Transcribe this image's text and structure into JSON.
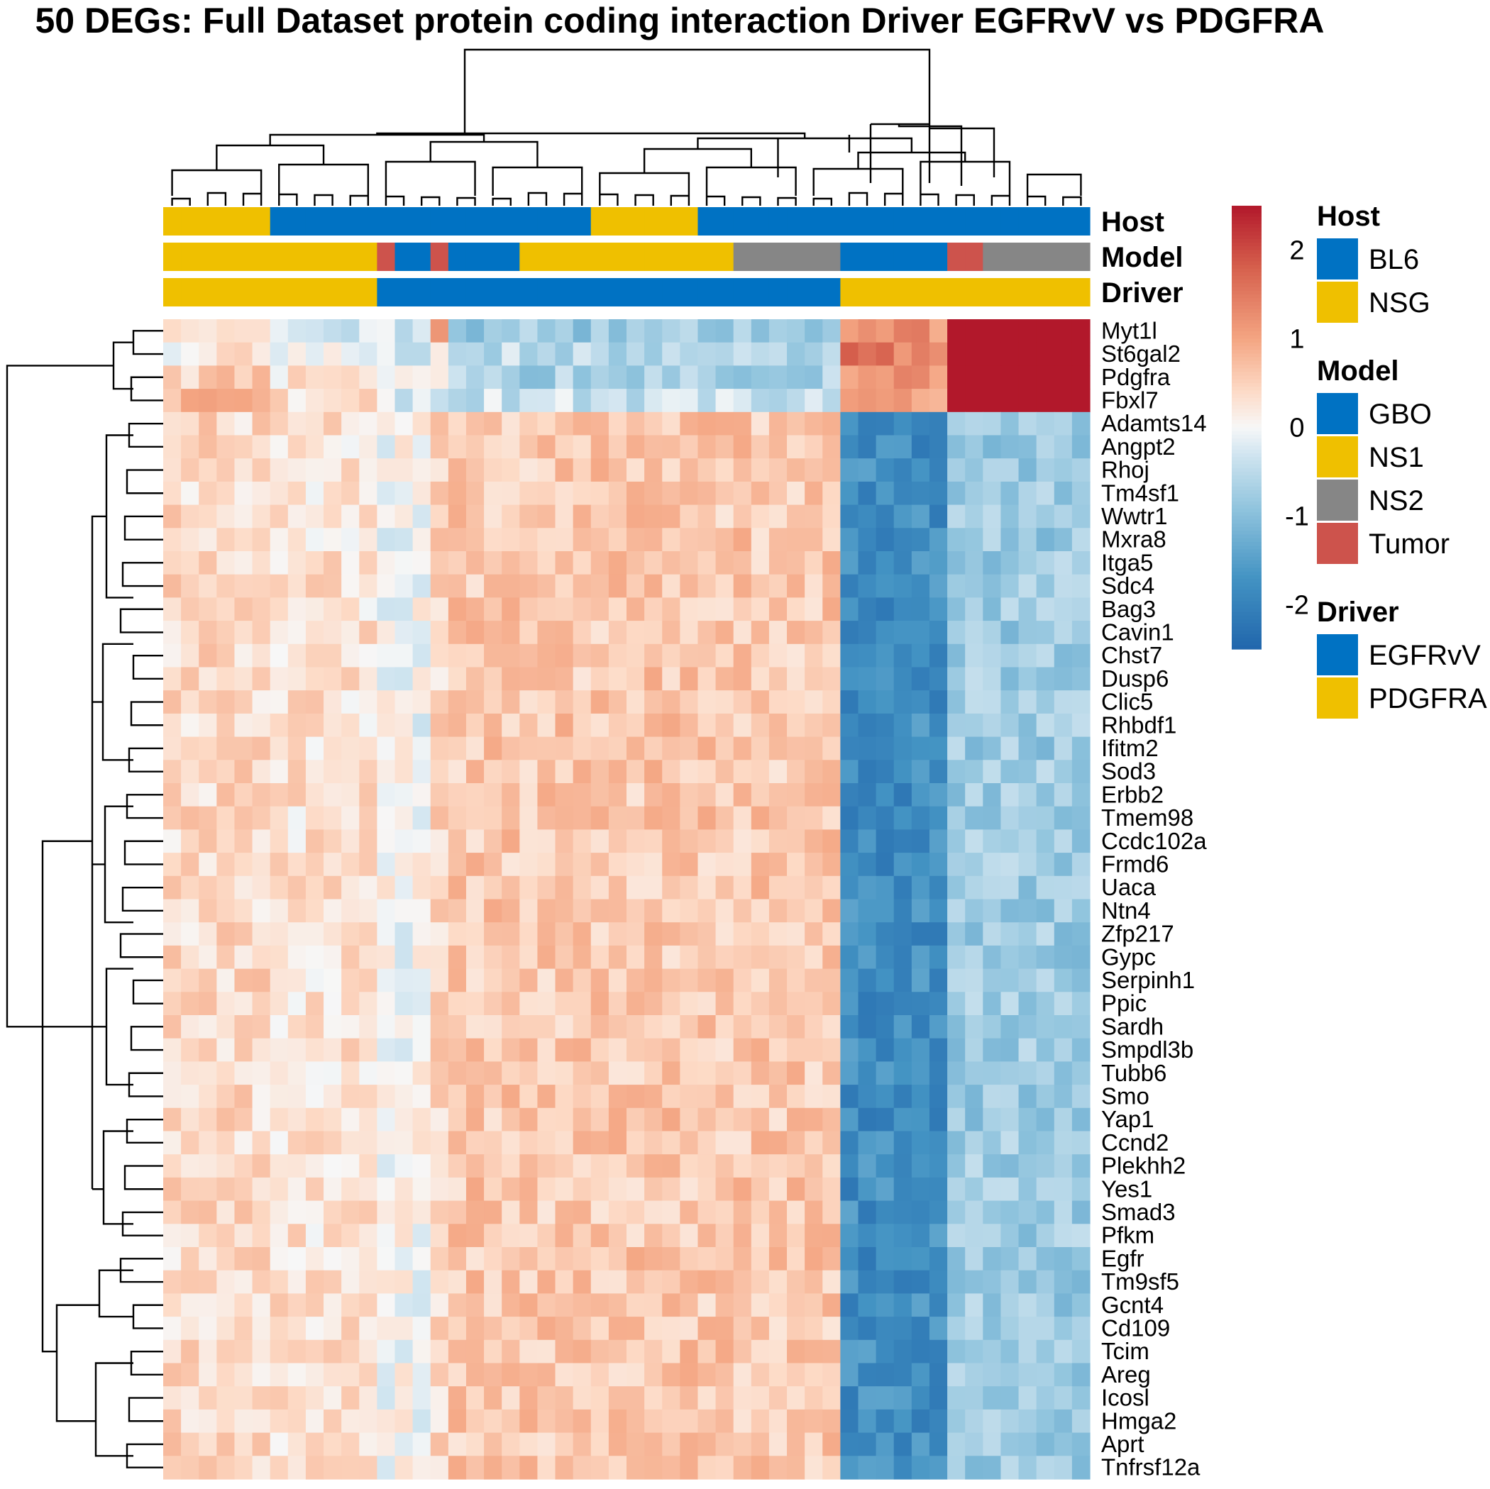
{
  "chart_data": {
    "type": "heatmap",
    "title": "50 DEGs: Full Dataset protein coding interaction Driver EGFRvV vs PDGFRA",
    "genes": [
      "Myt1l",
      "St6gal2",
      "Pdgfra",
      "Fbxl7",
      "Adamts14",
      "Angpt2",
      "Rhoj",
      "Tm4sf1",
      "Wwtr1",
      "Mxra8",
      "Itga5",
      "Sdc4",
      "Bag3",
      "Cavin1",
      "Chst7",
      "Dusp6",
      "Clic5",
      "Rhbdf1",
      "Ifitm2",
      "Sod3",
      "Erbb2",
      "Tmem98",
      "Ccdc102a",
      "Frmd6",
      "Uaca",
      "Ntn4",
      "Zfp217",
      "Gypc",
      "Serpinh1",
      "Ppic",
      "Sardh",
      "Smpdl3b",
      "Tubb6",
      "Smo",
      "Yap1",
      "Ccnd2",
      "Plekhh2",
      "Yes1",
      "Smad3",
      "Pfkm",
      "Egfr",
      "Tm9sf5",
      "Gcnt4",
      "Cd109",
      "Tcim",
      "Areg",
      "Icosl",
      "Hmga2",
      "Aprt",
      "Tnfrsf12a"
    ],
    "n_samples": 52,
    "gene_profiles": {
      "Myt1l": [
        0.1,
        -0.3,
        -0.4,
        1.1,
        -0.8,
        -0.8,
        -0.8,
        1.2
      ],
      "St6gal2": [
        0.2,
        0.0,
        -0.2,
        0.5,
        -0.5,
        -0.6,
        -0.6,
        1.5
      ],
      "Pdgfra": [
        0.5,
        0.3,
        0.1,
        -0.1,
        -0.6,
        -0.7,
        -0.7,
        1.3
      ],
      "Fbxl7": [
        0.7,
        0.3,
        -0.3,
        -0.5,
        -0.4,
        -0.4,
        -0.4,
        1.1
      ]
    },
    "sample_groups": [
      {
        "n": 6,
        "g": 0,
        "host": "NSG",
        "model": "NS1",
        "driver": "PDGFRA"
      },
      {
        "n": 6,
        "g": 1,
        "host": "BL6",
        "model": "NS1",
        "driver": "PDGFRA"
      },
      {
        "n": 1,
        "g": 2,
        "host": "BL6",
        "model": "Tumor",
        "driver": "EGFRvV"
      },
      {
        "n": 2,
        "g": 2,
        "host": "BL6",
        "model": "GBO",
        "driver": "EGFRvV"
      },
      {
        "n": 1,
        "g": 3,
        "host": "BL6",
        "model": "Tumor",
        "driver": "EGFRvV"
      },
      {
        "n": 4,
        "g": 4,
        "host": "BL6",
        "model": "GBO",
        "driver": "EGFRvV"
      },
      {
        "n": 4,
        "g": 5,
        "host": "BL6",
        "model": "NS1",
        "driver": "EGFRvV"
      },
      {
        "n": 6,
        "g": 5,
        "host": "NSG",
        "model": "NS1",
        "driver": "EGFRvV"
      },
      {
        "n": 2,
        "g": 5,
        "host": "BL6",
        "model": "NS1",
        "driver": "EGFRvV"
      },
      {
        "n": 6,
        "g": 6,
        "host": "BL6",
        "model": "NS2",
        "driver": "EGFRvV"
      },
      {
        "n": 6,
        "g": 7,
        "host": "BL6",
        "model": "GBO",
        "driver": "PDGFRA"
      },
      {
        "n": 2,
        "g": 8,
        "host": "BL6",
        "model": "Tumor",
        "driver": "PDGFRA"
      },
      {
        "n": 6,
        "g": 9,
        "host": "BL6",
        "model": "NS2",
        "driver": "PDGFRA"
      }
    ],
    "default_profile": [
      0.4,
      0.3,
      0.0,
      0.4,
      0.6,
      0.6,
      0.6,
      -1.8,
      -0.8,
      -0.8
    ],
    "annotation_tracks": [
      "Host",
      "Model",
      "Driver"
    ],
    "colorbar": {
      "min": -2.5,
      "max": 2.5,
      "ticks": [
        2,
        1,
        0,
        -1,
        -2
      ],
      "tick_labels": [
        "2",
        "1",
        "0",
        "-1",
        "-2"
      ],
      "low": "#2166ac",
      "mid": "#f7f7f7",
      "high": "#b2182b"
    },
    "legend": {
      "Host": {
        "title": "Host",
        "items": [
          {
            "label": "BL6",
            "color": "#0072c3"
          },
          {
            "label": "NSG",
            "color": "#efc000"
          }
        ]
      },
      "Model": {
        "title": "Model",
        "items": [
          {
            "label": "GBO",
            "color": "#0072c3"
          },
          {
            "label": "NS1",
            "color": "#efc000"
          },
          {
            "label": "NS2",
            "color": "#868686"
          },
          {
            "label": "Tumor",
            "color": "#cd534c"
          }
        ]
      },
      "Driver": {
        "title": "Driver",
        "items": [
          {
            "label": "EGFRvV",
            "color": "#0072c3"
          },
          {
            "label": "PDGFRA",
            "color": "#efc000"
          }
        ]
      }
    }
  }
}
